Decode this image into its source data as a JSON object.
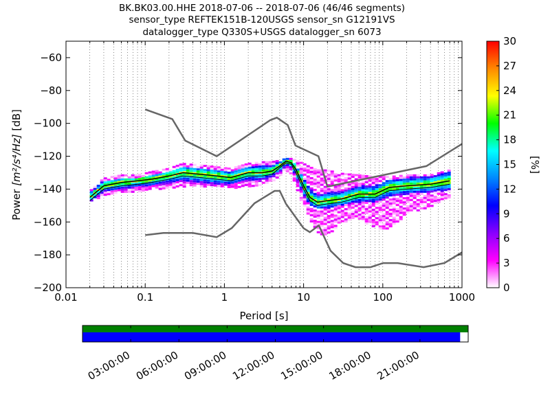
{
  "chart_data": [
    {
      "type": "heatmap",
      "title_lines": [
        "BK.BK03.00.HHE   2018-07-06 -- 2018-07-06  (46/46 segments)",
        "sensor_type REFTEK151B-120USGS sensor_sn G12191VS",
        "datalogger_type Q330S+USGS datalogger_sn 6073"
      ],
      "xlabel": "Period [s]",
      "ylabel_prefix": "Power ",
      "ylabel_math": "[m²/s⁴/Hz]",
      "ylabel_suffix": " [dB]",
      "xscale": "log",
      "xlim": [
        0.01,
        1000
      ],
      "ylim": [
        -200,
        -50
      ],
      "xtick_values": [
        0.01,
        0.1,
        1,
        10,
        100,
        1000
      ],
      "xtick_labels": [
        "0.01",
        "0.1",
        "1",
        "10",
        "100",
        "1000"
      ],
      "ytick_values": [
        -200,
        -180,
        -160,
        -140,
        -120,
        -100,
        -80,
        -60
      ],
      "ytick_labels": [
        "−200",
        "−180",
        "−160",
        "−140",
        "−120",
        "−100",
        "−80",
        "−60"
      ],
      "grid": "dotted, vertical lines at log subdivisions",
      "colorbar": {
        "label": "[%]",
        "range": [
          0,
          30
        ],
        "tick_values": [
          0,
          3,
          6,
          9,
          12,
          15,
          18,
          21,
          24,
          27,
          30
        ],
        "tick_labels": [
          "0",
          "3",
          "6",
          "9",
          "12",
          "15",
          "18",
          "21",
          "24",
          "27",
          "30"
        ],
        "colormap": [
          "#ffffff",
          "#ff00ff",
          "#8800ff",
          "#0000ff",
          "#0088ff",
          "#00ffff",
          "#00ff00",
          "#ffff00",
          "#ff8800",
          "#ff0000"
        ]
      },
      "noise_model_high": {
        "name": "NHNM",
        "x": [
          0.1,
          0.22,
          0.32,
          0.8,
          3.8,
          4.6,
          6.3,
          7.9,
          15.4,
          20,
          354.8,
          1000
        ],
        "y": [
          -91.5,
          -97.4,
          -110.5,
          -120,
          -98,
          -96.5,
          -101,
          -113.5,
          -120,
          -138.5,
          -126,
          -112.5
        ]
      },
      "noise_model_low": {
        "name": "NLNM",
        "x": [
          0.1,
          0.17,
          0.4,
          0.8,
          1.24,
          2.4,
          4.3,
          5,
          6,
          10,
          12,
          15.6,
          21.9,
          31.6,
          45,
          70,
          101,
          154,
          328,
          600,
          1000
        ],
        "y": [
          -168,
          -166.7,
          -166.7,
          -169.2,
          -163.7,
          -148.6,
          -141.1,
          -141.1,
          -149,
          -163.8,
          -166.2,
          -162.1,
          -177.5,
          -185,
          -187.5,
          -187.5,
          -185,
          -185,
          -187.5,
          -185,
          -178.5
        ]
      },
      "mean_psd": {
        "x": [
          0.02,
          0.03,
          0.05,
          0.08,
          0.12,
          0.2,
          0.3,
          0.5,
          0.8,
          1.2,
          2,
          3,
          4,
          5,
          6,
          7,
          8,
          10,
          12,
          15,
          20,
          30,
          50,
          80,
          120,
          200,
          400,
          700
        ],
        "y": [
          -145,
          -138,
          -136,
          -135,
          -134,
          -132,
          -130,
          -131,
          -132,
          -133,
          -130,
          -130,
          -129,
          -126,
          -123,
          -124,
          -128,
          -138,
          -145,
          -148,
          -147,
          -146,
          -143,
          -143,
          -139,
          -138,
          -137,
          -135
        ]
      },
      "secondary_psd": {
        "x": [
          0.02,
          0.03,
          0.05,
          0.08,
          0.12,
          0.2,
          0.3,
          0.5,
          0.8,
          1.2,
          2,
          3,
          4,
          5,
          6,
          7,
          8,
          10,
          12,
          15,
          20,
          30,
          50,
          80,
          120,
          200,
          400,
          700
        ],
        "y": [
          -147,
          -140,
          -138,
          -137,
          -136,
          -134,
          -132,
          -133,
          -134,
          -135,
          -132,
          -132,
          -131,
          -127,
          -124,
          -125,
          -130,
          -140,
          -147,
          -150,
          -149,
          -148,
          -145,
          -145,
          -141,
          -140,
          -139,
          -137
        ]
      },
      "heatmap_band": {
        "x": [
          0.02,
          0.03,
          0.05,
          0.08,
          0.12,
          0.2,
          0.3,
          0.5,
          0.8,
          1.2,
          2,
          3,
          4,
          5,
          6,
          7,
          8,
          10,
          12,
          15,
          20,
          30,
          50,
          80,
          120,
          200,
          400,
          700
        ],
        "core_top": [
          -142,
          -135,
          -133,
          -133,
          -131,
          -129,
          -126,
          -127,
          -128,
          -130,
          -127,
          -126,
          -126,
          -123,
          -121,
          -122,
          -125,
          -133,
          -140,
          -143,
          -142,
          -141,
          -138,
          -138,
          -134,
          -133,
          -132,
          -129
        ],
        "core_bottom": [
          -148,
          -142,
          -141,
          -140,
          -139,
          -137,
          -136,
          -137,
          -138,
          -138,
          -136,
          -135,
          -133,
          -130,
          -126,
          -128,
          -133,
          -144,
          -150,
          -152,
          -152,
          -150,
          -148,
          -148,
          -145,
          -143,
          -142,
          -141
        ],
        "outer_top": [
          -141,
          -133,
          -131,
          -131,
          -129,
          -127,
          -124,
          -125,
          -126,
          -127,
          -124,
          -123,
          -123,
          -122,
          -121,
          -121,
          -122,
          -124,
          -126,
          -128,
          -128,
          -130,
          -131,
          -132,
          -132,
          -131,
          -131,
          -128
        ],
        "outer_bottom": [
          -148,
          -143,
          -142,
          -141,
          -140,
          -139,
          -138,
          -138,
          -138,
          -139,
          -138,
          -137,
          -135,
          -132,
          -128,
          -130,
          -138,
          -150,
          -158,
          -166,
          -168,
          -160,
          -158,
          -163,
          -165,
          -155,
          -150,
          -145
        ]
      }
    },
    {
      "type": "bar",
      "name": "data availability",
      "x_tick_labels": [
        "03:00:00",
        "06:00:00",
        "09:00:00",
        "12:00:00",
        "15:00:00",
        "18:00:00",
        "21:00:00"
      ],
      "x_tick_hours": [
        3,
        6,
        9,
        12,
        15,
        18,
        21
      ],
      "xlim_hours": [
        0,
        24
      ],
      "green_bar": {
        "start": 0,
        "end": 24,
        "color": "#008000"
      },
      "blue_bar": {
        "start": 0,
        "end": 23.5,
        "color": "#0000ff"
      }
    }
  ]
}
